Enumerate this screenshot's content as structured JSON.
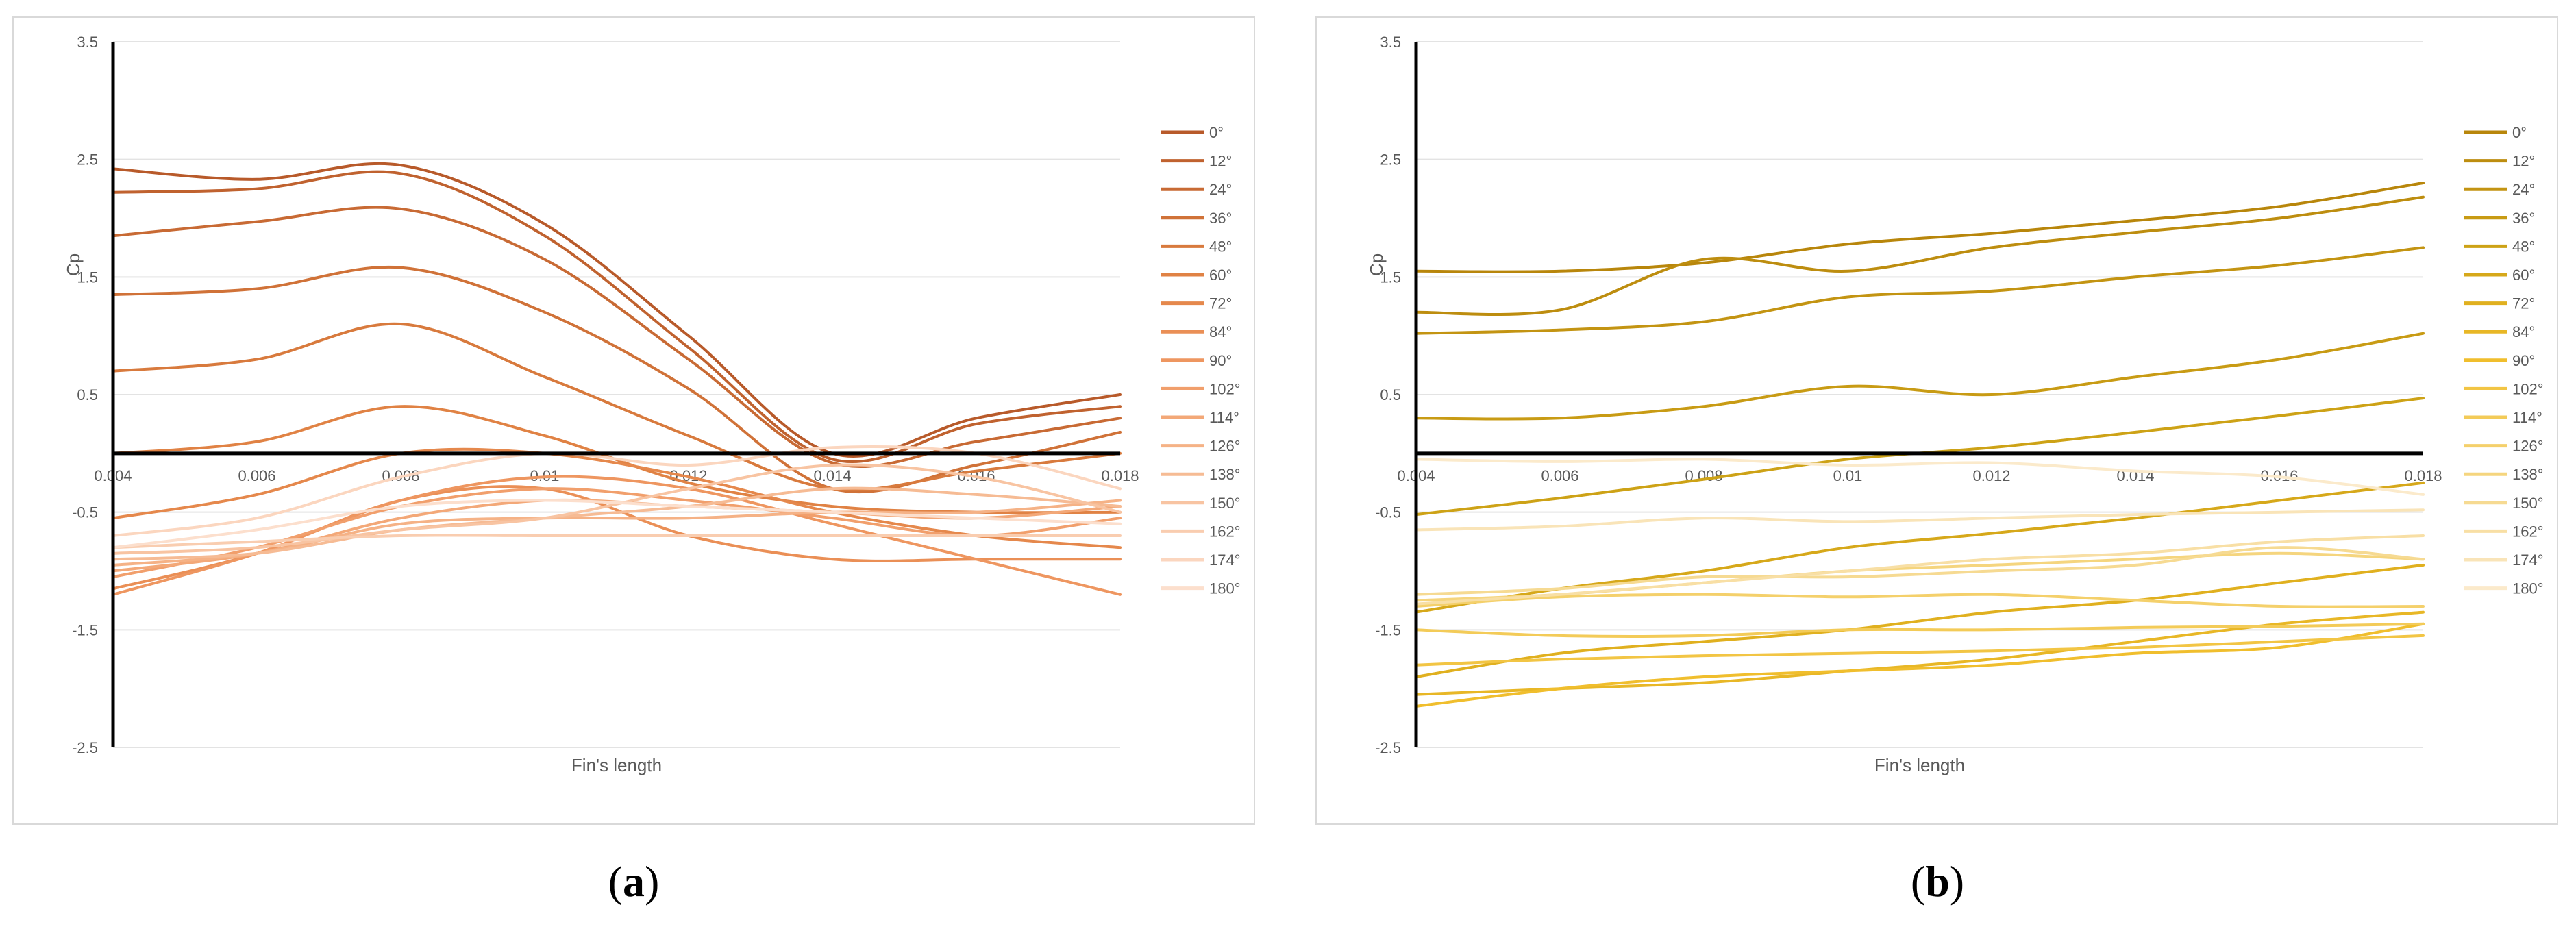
{
  "captions": [
    {
      "open": "(",
      "letter": "a",
      "close": ")"
    },
    {
      "open": "(",
      "letter": "b",
      "close": ")"
    }
  ],
  "chart_data": [
    {
      "type": "line",
      "title": "",
      "xlabel": "Fin's length",
      "ylabel": "Cp",
      "xlim": [
        0.004,
        0.018
      ],
      "ylim": [
        -2.5,
        3.5
      ],
      "x_ticks": [
        "0.004",
        "0.006",
        "0.008",
        "0.01",
        "0.012",
        "0.014",
        "0.016",
        "0.018"
      ],
      "y_ticks": [
        "3.5",
        "2.5",
        "1.5",
        "0.5",
        "-0.5",
        "-1.5",
        "-2.5"
      ],
      "grid": true,
      "legend": "right",
      "x": [
        0.004,
        0.006,
        0.008,
        0.01,
        0.012,
        0.014,
        0.016,
        0.018
      ],
      "series": [
        {
          "name": "0°",
          "color": "#b85a2a",
          "values": [
            2.42,
            2.33,
            2.45,
            1.95,
            1.0,
            0.0,
            0.3,
            0.5
          ]
        },
        {
          "name": "12°",
          "color": "#c0622f",
          "values": [
            2.22,
            2.25,
            2.38,
            1.85,
            0.9,
            -0.05,
            0.25,
            0.4
          ]
        },
        {
          "name": "24°",
          "color": "#c86a34",
          "values": [
            1.85,
            1.97,
            2.08,
            1.65,
            0.8,
            -0.08,
            0.1,
            0.3
          ]
        },
        {
          "name": "36°",
          "color": "#d07238",
          "values": [
            1.35,
            1.4,
            1.58,
            1.2,
            0.55,
            -0.3,
            -0.1,
            0.18
          ]
        },
        {
          "name": "48°",
          "color": "#d87a3d",
          "values": [
            0.7,
            0.8,
            1.1,
            0.65,
            0.15,
            -0.3,
            -0.15,
            0.0
          ]
        },
        {
          "name": "60°",
          "color": "#e08244",
          "values": [
            0.0,
            0.1,
            0.4,
            0.15,
            -0.25,
            -0.45,
            -0.5,
            -0.5
          ]
        },
        {
          "name": "72°",
          "color": "#e5884c",
          "values": [
            -0.55,
            -0.35,
            0.0,
            0.0,
            -0.2,
            -0.5,
            -0.7,
            -0.8
          ]
        },
        {
          "name": "84°",
          "color": "#ea8f56",
          "values": [
            -1.15,
            -0.85,
            -0.4,
            -0.3,
            -0.7,
            -0.9,
            -0.9,
            -0.9
          ]
        },
        {
          "name": "90°",
          "color": "#ee9660",
          "values": [
            -1.2,
            -0.85,
            -0.4,
            -0.2,
            -0.3,
            -0.6,
            -0.9,
            -1.2
          ]
        },
        {
          "name": "102°",
          "color": "#f19f6c",
          "values": [
            -1.05,
            -0.8,
            -0.45,
            -0.3,
            -0.4,
            -0.55,
            -0.7,
            -0.55
          ]
        },
        {
          "name": "114°",
          "color": "#f3a878",
          "values": [
            -1.0,
            -0.85,
            -0.55,
            -0.4,
            -0.45,
            -0.5,
            -0.55,
            -0.45
          ]
        },
        {
          "name": "126°",
          "color": "#f5b286",
          "values": [
            -0.95,
            -0.85,
            -0.6,
            -0.55,
            -0.55,
            -0.5,
            -0.5,
            -0.4
          ]
        },
        {
          "name": "138°",
          "color": "#f6bb94",
          "values": [
            -0.9,
            -0.85,
            -0.65,
            -0.55,
            -0.45,
            -0.3,
            -0.35,
            -0.45
          ]
        },
        {
          "name": "150°",
          "color": "#f8c4a2",
          "values": [
            -0.85,
            -0.8,
            -0.65,
            -0.55,
            -0.3,
            -0.1,
            -0.2,
            -0.5
          ]
        },
        {
          "name": "162°",
          "color": "#f9cdb0",
          "values": [
            -0.8,
            -0.75,
            -0.7,
            -0.7,
            -0.7,
            -0.7,
            -0.7,
            -0.7
          ]
        },
        {
          "name": "174°",
          "color": "#fbd6bf",
          "values": [
            -0.7,
            -0.55,
            -0.2,
            0.0,
            -0.1,
            0.05,
            0.0,
            -0.3
          ]
        },
        {
          "name": "180°",
          "color": "#fcdfcd",
          "values": [
            -0.8,
            -0.65,
            -0.45,
            -0.4,
            -0.45,
            -0.5,
            -0.55,
            -0.6
          ]
        }
      ]
    },
    {
      "type": "line",
      "title": "",
      "xlabel": "Fin's length",
      "ylabel": "Cp",
      "xlim": [
        0.004,
        0.018
      ],
      "ylim": [
        -2.5,
        3.5
      ],
      "x_ticks": [
        "0.004",
        "0.006",
        "0.008",
        "0.01",
        "0.012",
        "0.014",
        "0.016",
        "0.018"
      ],
      "y_ticks": [
        "3.5",
        "2.5",
        "1.5",
        "0.5",
        "-0.5",
        "-1.5",
        "-2.5"
      ],
      "grid": true,
      "legend": "right",
      "x": [
        0.004,
        0.006,
        0.008,
        0.01,
        0.012,
        0.014,
        0.016,
        0.018
      ],
      "series": [
        {
          "name": "0°",
          "color": "#b8860b",
          "values": [
            1.55,
            1.55,
            1.62,
            1.78,
            1.87,
            1.98,
            2.1,
            2.3
          ]
        },
        {
          "name": "12°",
          "color": "#bd8d0f",
          "values": [
            1.2,
            1.22,
            1.65,
            1.55,
            1.75,
            1.88,
            2.0,
            2.18
          ]
        },
        {
          "name": "24°",
          "color": "#c39412",
          "values": [
            1.02,
            1.05,
            1.12,
            1.33,
            1.38,
            1.5,
            1.6,
            1.75
          ]
        },
        {
          "name": "36°",
          "color": "#c89b14",
          "values": [
            0.3,
            0.3,
            0.4,
            0.57,
            0.5,
            0.65,
            0.8,
            1.02
          ]
        },
        {
          "name": "48°",
          "color": "#cda216",
          "values": [
            -0.52,
            -0.38,
            -0.22,
            -0.05,
            0.05,
            0.18,
            0.32,
            0.47
          ]
        },
        {
          "name": "60°",
          "color": "#d6a81a",
          "values": [
            -1.35,
            -1.15,
            -1.0,
            -0.8,
            -0.68,
            -0.55,
            -0.4,
            -0.25
          ]
        },
        {
          "name": "72°",
          "color": "#e0b01f",
          "values": [
            -1.9,
            -1.7,
            -1.6,
            -1.5,
            -1.35,
            -1.25,
            -1.1,
            -0.95
          ]
        },
        {
          "name": "84°",
          "color": "#e8b726",
          "values": [
            -2.05,
            -2.0,
            -1.95,
            -1.85,
            -1.75,
            -1.6,
            -1.45,
            -1.35
          ]
        },
        {
          "name": "90°",
          "color": "#f0be2d",
          "values": [
            -2.15,
            -2.0,
            -1.9,
            -1.85,
            -1.8,
            -1.7,
            -1.65,
            -1.45
          ]
        },
        {
          "name": "102°",
          "color": "#f2c544",
          "values": [
            -1.8,
            -1.75,
            -1.72,
            -1.7,
            -1.68,
            -1.65,
            -1.6,
            -1.55
          ]
        },
        {
          "name": "114°",
          "color": "#f3cb58",
          "values": [
            -1.5,
            -1.55,
            -1.55,
            -1.5,
            -1.5,
            -1.48,
            -1.47,
            -1.45
          ]
        },
        {
          "name": "126°",
          "color": "#f4d06b",
          "values": [
            -1.3,
            -1.22,
            -1.2,
            -1.22,
            -1.2,
            -1.25,
            -1.3,
            -1.3
          ]
        },
        {
          "name": "138°",
          "color": "#f5d57e",
          "values": [
            -1.25,
            -1.2,
            -1.1,
            -1.0,
            -0.95,
            -0.9,
            -0.85,
            -0.9
          ]
        },
        {
          "name": "150°",
          "color": "#f6da92",
          "values": [
            -1.2,
            -1.15,
            -1.05,
            -1.05,
            -1.0,
            -0.95,
            -0.8,
            -0.9
          ]
        },
        {
          "name": "162°",
          "color": "#f8dfa5",
          "values": [
            -1.28,
            -1.2,
            -1.1,
            -1.0,
            -0.9,
            -0.85,
            -0.75,
            -0.7
          ]
        },
        {
          "name": "174°",
          "color": "#f9e4b8",
          "values": [
            -0.65,
            -0.62,
            -0.55,
            -0.58,
            -0.55,
            -0.52,
            -0.5,
            -0.48
          ]
        },
        {
          "name": "180°",
          "color": "#fbeacb",
          "values": [
            -0.05,
            -0.07,
            -0.05,
            -0.1,
            -0.08,
            -0.15,
            -0.2,
            -0.35
          ]
        }
      ]
    }
  ]
}
